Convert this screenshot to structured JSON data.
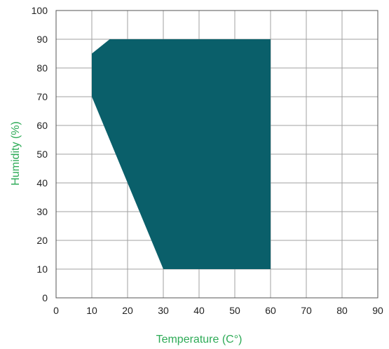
{
  "chart_data": {
    "type": "area",
    "title": "",
    "xlabel": "Temperature (C°)",
    "ylabel": "Humidity (%)",
    "xlim": [
      0,
      90
    ],
    "ylim": [
      0,
      100
    ],
    "x_ticks": [
      "0",
      "10",
      "20",
      "30",
      "40",
      "50",
      "60",
      "70",
      "80",
      "90"
    ],
    "y_ticks": [
      "0",
      "10",
      "20",
      "30",
      "40",
      "50",
      "60",
      "70",
      "80",
      "90",
      "100"
    ],
    "grid": true,
    "legend": "none",
    "series": [
      {
        "points": [
          {
            "x": 10,
            "y": 85
          },
          {
            "x": 15,
            "y": 90
          },
          {
            "x": 60,
            "y": 90
          },
          {
            "x": 60,
            "y": 10
          },
          {
            "x": 30,
            "y": 10
          },
          {
            "x": 10,
            "y": 70
          }
        ],
        "color": "#0a5f6a"
      }
    ],
    "colors": {
      "axis_label": "#2eab57",
      "tick_label": "#222222",
      "grid": "#a0a0a0",
      "frame": "#555555"
    }
  }
}
